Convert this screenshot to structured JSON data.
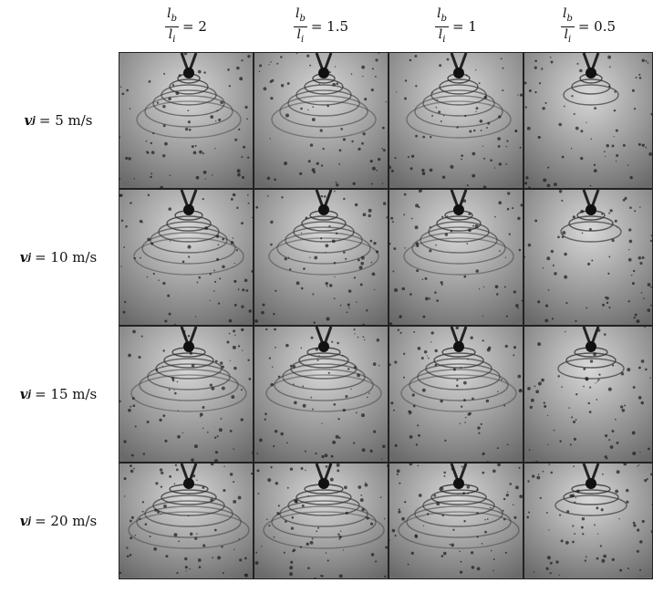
{
  "columns": [
    {
      "num": "l",
      "num_sub": "b",
      "den": "l",
      "den_sub": "i",
      "rest": "= 2"
    },
    {
      "num": "l",
      "num_sub": "b",
      "den": "l",
      "den_sub": "i",
      "rest": "= 1.5"
    },
    {
      "num": "l",
      "num_sub": "b",
      "den": "l",
      "den_sub": "i",
      "rest": "= 1"
    },
    {
      "num": "l",
      "num_sub": "b",
      "den": "l",
      "den_sub": "i",
      "rest": "= 0.5"
    }
  ],
  "rows": [
    {
      "symbol": "v",
      "sub": "j",
      "rest": "= 5 m/s"
    },
    {
      "symbol": "v",
      "sub": "j",
      "rest": "= 10 m/s"
    },
    {
      "symbol": "v",
      "sub": "j",
      "rest": "= 15 m/s"
    },
    {
      "symbol": "v",
      "sub": "j",
      "rest": "= 20 m/s"
    }
  ]
}
